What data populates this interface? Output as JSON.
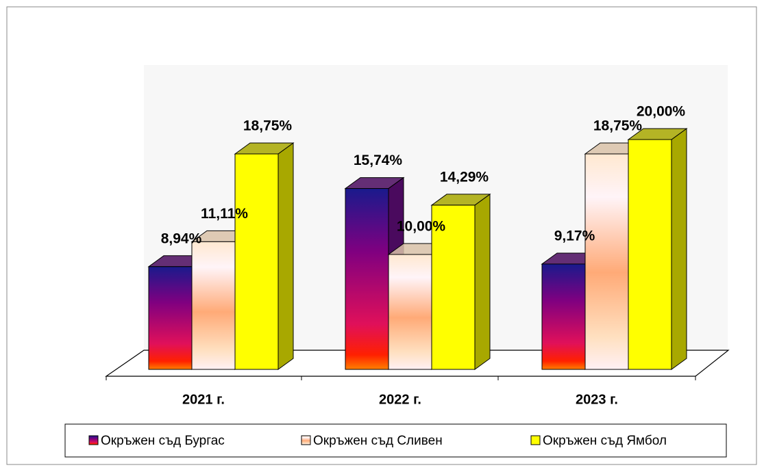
{
  "chart_data": {
    "type": "bar3d",
    "categories": [
      "2021 г.",
      "2022 г.",
      "2023 г."
    ],
    "series": [
      {
        "name": "Окръжен съд Бургас",
        "color": "#4a0a5e",
        "values": [
          8.94,
          15.74,
          9.17
        ],
        "value_labels": [
          "8,94%",
          "15,74%",
          "9,17%"
        ]
      },
      {
        "name": "Окръжен съд Сливен",
        "color": "#d9c2a8",
        "values": [
          11.11,
          10.0,
          18.75
        ],
        "value_labels": [
          "11,11%",
          "10,00%",
          "18,75%"
        ]
      },
      {
        "name": "Окръжен съд Ямбол",
        "color": "#a8a800",
        "values": [
          18.75,
          14.29,
          20.0
        ],
        "value_labels": [
          "18,75%",
          "14,29%",
          "20,00%"
        ]
      }
    ],
    "legend": "bottom"
  }
}
